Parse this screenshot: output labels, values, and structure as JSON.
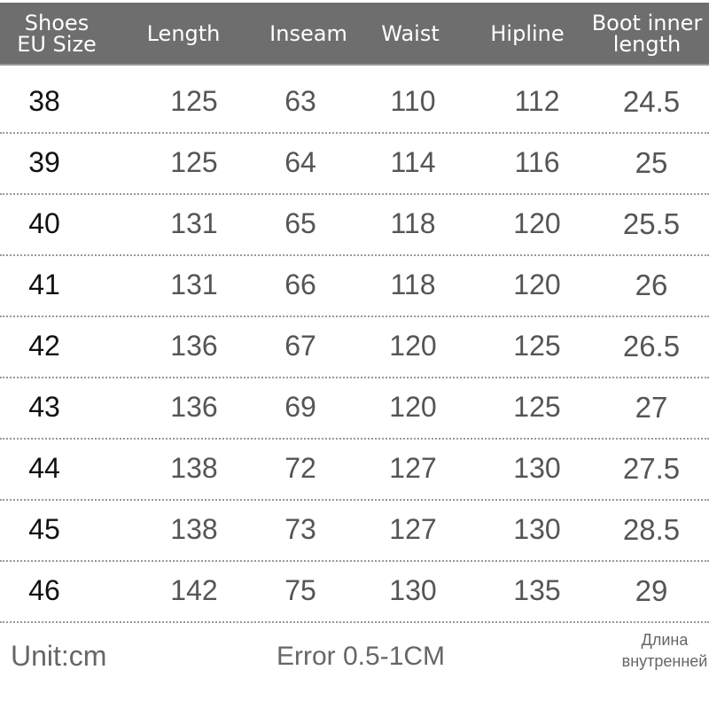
{
  "header": [
    "Shoes EU Size",
    "Length",
    "Inseam",
    "Waist",
    "Hipline",
    "Boot inner length"
  ],
  "header_lines": {
    "size": [
      "Shoes",
      "EU Size"
    ],
    "boot": [
      "Boot inner",
      "length"
    ]
  },
  "rows": [
    [
      "38",
      "125",
      "63",
      "110",
      "112",
      "24.5"
    ],
    [
      "39",
      "125",
      "64",
      "114",
      "116",
      "25"
    ],
    [
      "40",
      "131",
      "65",
      "118",
      "120",
      "25.5"
    ],
    [
      "41",
      "131",
      "66",
      "118",
      "120",
      "26"
    ],
    [
      "42",
      "136",
      "67",
      "120",
      "125",
      "26.5"
    ],
    [
      "43",
      "136",
      "69",
      "120",
      "125",
      "27"
    ],
    [
      "44",
      "138",
      "72",
      "127",
      "130",
      "27.5"
    ],
    [
      "45",
      "138",
      "73",
      "127",
      "130",
      "28.5"
    ],
    [
      "46",
      "142",
      "75",
      "130",
      "135",
      "29"
    ]
  ],
  "footer": {
    "unit": "Unit:cm",
    "error": "Error 0.5-1CM",
    "russian_line1": "Длина",
    "russian_line2": "внутренней"
  },
  "colors": {
    "header_bg": "#6e6e6e",
    "header_text": "#ffffff",
    "cell_text": "#555555"
  }
}
